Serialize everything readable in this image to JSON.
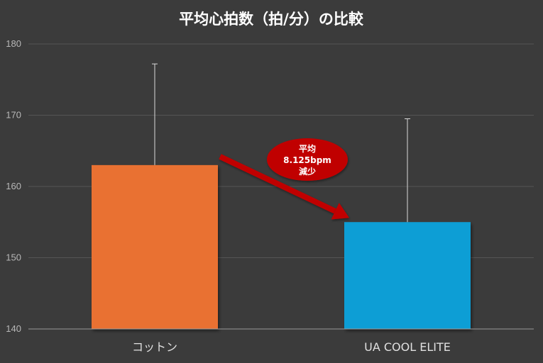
{
  "chart_data": {
    "type": "bar",
    "title": "平均心拍数（拍/分）の比較",
    "xlabel": "",
    "ylabel": "",
    "categories": [
      "コットン",
      "UA COOL ELITE"
    ],
    "values": [
      163,
      155
    ],
    "error_upper": [
      177.2,
      169.5
    ],
    "ylim": [
      140,
      180
    ],
    "yticks": [
      140,
      150,
      160,
      170,
      180
    ],
    "grid": true,
    "colors": [
      "#e97132",
      "#0f9ed5"
    ],
    "annotation": {
      "lines": [
        "平均",
        "8.125bpm",
        "減少"
      ],
      "color": "#c00000",
      "arrow_from": "コットン",
      "arrow_to": "UA COOL ELITE"
    }
  }
}
